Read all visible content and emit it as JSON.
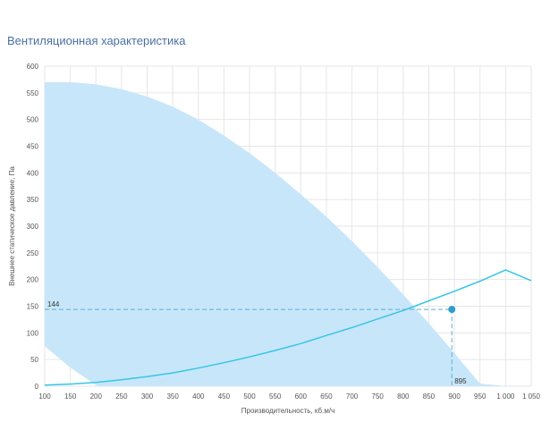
{
  "chart_data": {
    "type": "line",
    "title": "Вентиляционная характеристика",
    "xlabel": "Производительность, кб.м/ч",
    "ylabel": "Внешнее статическое давление, Па",
    "xlim": [
      100,
      1050
    ],
    "ylim": [
      0,
      600
    ],
    "grid": true,
    "x_ticks": [
      100,
      150,
      200,
      250,
      300,
      350,
      400,
      450,
      500,
      550,
      600,
      650,
      700,
      750,
      800,
      850,
      900,
      950,
      1000,
      1050
    ],
    "x_tick_labels": [
      "100",
      "150",
      "200",
      "250",
      "300",
      "350",
      "400",
      "450",
      "500",
      "550",
      "600",
      "650",
      "700",
      "750",
      "800",
      "850",
      "900",
      "950",
      "1 000",
      "1 050"
    ],
    "y_ticks": [
      0,
      50,
      100,
      150,
      200,
      250,
      300,
      350,
      400,
      450,
      500,
      550,
      600
    ],
    "y_tick_labels": [
      "0",
      "50",
      "100",
      "150",
      "200",
      "250",
      "300",
      "350",
      "400",
      "450",
      "500",
      "550",
      "600"
    ],
    "series": [
      {
        "name": "working-area-upper",
        "kind": "area-upper",
        "color": "#c8e6fa",
        "x": [
          100,
          150,
          200,
          250,
          300,
          350,
          400,
          450,
          500,
          550,
          600,
          650,
          700,
          750,
          800,
          850,
          900,
          950,
          1000,
          1050
        ],
        "y": [
          570,
          570,
          566,
          557,
          543,
          524,
          500,
          470,
          437,
          400,
          360,
          318,
          272,
          223,
          172,
          118,
          62,
          5,
          0,
          0
        ]
      },
      {
        "name": "working-area-lower",
        "kind": "area-lower",
        "color": "#c8e6fa",
        "x": [
          100,
          150,
          200,
          210,
          1050
        ],
        "y": [
          75,
          35,
          2,
          0,
          0
        ]
      },
      {
        "name": "network-curve",
        "kind": "line",
        "color": "#35c6e6",
        "x": [
          100,
          150,
          200,
          250,
          300,
          350,
          400,
          450,
          500,
          550,
          600,
          650,
          700,
          750,
          800,
          850,
          900,
          950,
          1000,
          1050
        ],
        "y": [
          2,
          4,
          7,
          12,
          18,
          25,
          34,
          44,
          55,
          67,
          80,
          95,
          110,
          126,
          142,
          160,
          178,
          197,
          218,
          198
        ]
      }
    ],
    "operating_point": {
      "x": 895,
      "y": 144,
      "x_label": "895",
      "y_label": "144",
      "color": "#2d9cc8"
    }
  }
}
